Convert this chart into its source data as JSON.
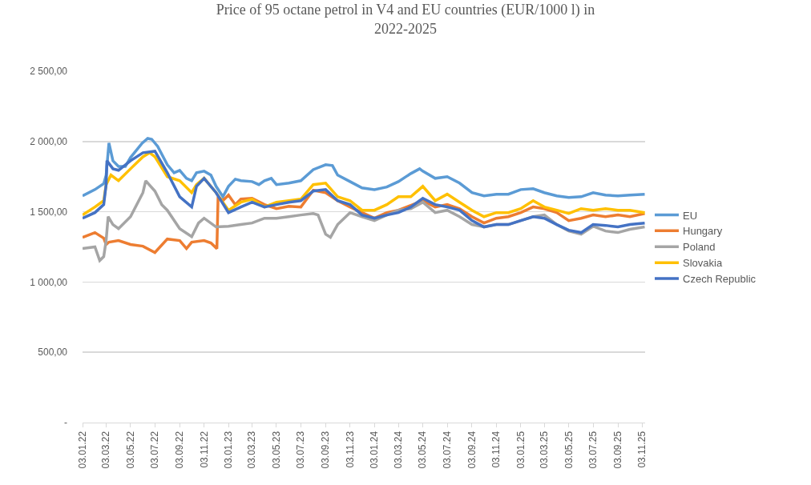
{
  "chart_data": {
    "type": "line",
    "title": "Price of 95 octane petrol in V4 and EU countries (EUR/1000 l) in 2022-2025",
    "xlim": [
      "2022-01-03",
      "2025-11-10"
    ],
    "xticks": [
      {
        "value": "2022-01-03",
        "label": "03.01.22"
      },
      {
        "value": "2022-03-03",
        "label": "03.03.22"
      },
      {
        "value": "2022-05-03",
        "label": "03.05.22"
      },
      {
        "value": "2022-07-03",
        "label": "03.07.22"
      },
      {
        "value": "2022-09-03",
        "label": "03.09.22"
      },
      {
        "value": "2022-11-03",
        "label": "03.11.22"
      },
      {
        "value": "2023-01-03",
        "label": "03.01.23"
      },
      {
        "value": "2023-03-03",
        "label": "03.03.23"
      },
      {
        "value": "2023-05-03",
        "label": "03.05.23"
      },
      {
        "value": "2023-07-03",
        "label": "03.07.23"
      },
      {
        "value": "2023-09-03",
        "label": "03.09.23"
      },
      {
        "value": "2023-11-03",
        "label": "03.11.23"
      },
      {
        "value": "2024-01-03",
        "label": "03.01.24"
      },
      {
        "value": "2024-03-03",
        "label": "03.03.24"
      },
      {
        "value": "2024-05-03",
        "label": "03.05.24"
      },
      {
        "value": "2024-07-03",
        "label": "03.07.24"
      },
      {
        "value": "2024-09-03",
        "label": "03.09.24"
      },
      {
        "value": "2024-11-03",
        "label": "03.11.24"
      },
      {
        "value": "2025-01-03",
        "label": "03.01.25"
      },
      {
        "value": "2025-03-03",
        "label": "03.03.25"
      },
      {
        "value": "2025-05-03",
        "label": "03.05.25"
      },
      {
        "value": "2025-07-03",
        "label": "03.07.25"
      },
      {
        "value": "2025-09-03",
        "label": "03.09.25"
      },
      {
        "value": "2025-11-03",
        "label": "03.11.25"
      }
    ],
    "ylim": [
      0,
      2500
    ],
    "yticks": [
      {
        "value": 0,
        "label": "-"
      },
      {
        "value": 500,
        "label": "500,00"
      },
      {
        "value": 1000,
        "label": "1 000,00"
      },
      {
        "value": 1500,
        "label": "1 500,00"
      },
      {
        "value": 2000,
        "label": "2 000,00"
      },
      {
        "value": 2500,
        "label": "2 500,00"
      }
    ],
    "grid": "y",
    "legend": "right",
    "marker": "none",
    "line_style": "solid",
    "series": [
      {
        "name": "EU",
        "color": "#5b9bd5",
        "x": [
          "2022-01-03",
          "2022-02-03",
          "2022-02-25",
          "2022-03-03",
          "2022-03-10",
          "2022-03-20",
          "2022-04-03",
          "2022-04-20",
          "2022-05-03",
          "2022-06-01",
          "2022-06-15",
          "2022-06-25",
          "2022-07-10",
          "2022-08-03",
          "2022-08-20",
          "2022-09-03",
          "2022-09-20",
          "2022-10-03",
          "2022-10-15",
          "2022-11-03",
          "2022-11-20",
          "2022-12-03",
          "2022-12-20",
          "2023-01-03",
          "2023-01-20",
          "2023-02-03",
          "2023-03-03",
          "2023-03-20",
          "2023-04-03",
          "2023-04-20",
          "2023-05-03",
          "2023-06-03",
          "2023-07-03",
          "2023-08-03",
          "2023-09-03",
          "2023-09-20",
          "2023-10-03",
          "2023-11-03",
          "2023-12-03",
          "2024-01-03",
          "2024-02-03",
          "2024-03-03",
          "2024-04-03",
          "2024-04-25",
          "2024-05-03",
          "2024-06-03",
          "2024-07-03",
          "2024-08-03",
          "2024-09-03",
          "2024-10-03",
          "2024-11-03",
          "2024-12-03",
          "2025-01-03",
          "2025-02-03",
          "2025-03-03",
          "2025-04-03",
          "2025-05-03",
          "2025-06-03",
          "2025-07-03",
          "2025-08-03",
          "2025-09-03",
          "2025-10-03",
          "2025-11-09"
        ],
        "values": [
          1613,
          1658,
          1700,
          1760,
          1990,
          1863,
          1823,
          1823,
          1886,
          1988,
          2022,
          2016,
          1965,
          1835,
          1778,
          1795,
          1738,
          1721,
          1778,
          1789,
          1761,
          1681,
          1607,
          1681,
          1732,
          1721,
          1715,
          1693,
          1721,
          1738,
          1693,
          1704,
          1721,
          1800,
          1835,
          1829,
          1761,
          1715,
          1670,
          1658,
          1676,
          1715,
          1772,
          1806,
          1789,
          1738,
          1750,
          1704,
          1636,
          1613,
          1625,
          1625,
          1658,
          1664,
          1636,
          1613,
          1602,
          1607,
          1636,
          1619,
          1613,
          1619,
          1625
        ]
      },
      {
        "name": "Hungary",
        "color": "#ed7d31",
        "x": [
          "2022-01-03",
          "2022-02-03",
          "2022-02-25",
          "2022-03-03",
          "2022-03-10",
          "2022-04-03",
          "2022-05-03",
          "2022-06-03",
          "2022-07-03",
          "2022-08-03",
          "2022-09-03",
          "2022-09-20",
          "2022-10-03",
          "2022-11-03",
          "2022-11-20",
          "2022-12-05",
          "2022-12-08",
          "2022-12-20",
          "2023-01-03",
          "2023-01-20",
          "2023-02-03",
          "2023-03-03",
          "2023-04-03",
          "2023-05-03",
          "2023-06-03",
          "2023-07-03",
          "2023-08-03",
          "2023-09-03",
          "2023-10-03",
          "2023-11-03",
          "2023-12-03",
          "2024-01-03",
          "2024-02-03",
          "2024-03-03",
          "2024-04-03",
          "2024-05-03",
          "2024-06-03",
          "2024-07-03",
          "2024-08-03",
          "2024-09-03",
          "2024-10-03",
          "2024-11-03",
          "2024-12-03",
          "2025-01-03",
          "2025-02-03",
          "2025-03-03",
          "2025-04-03",
          "2025-05-03",
          "2025-06-03",
          "2025-07-03",
          "2025-08-03",
          "2025-09-03",
          "2025-10-03",
          "2025-11-09"
        ],
        "values": [
          1318,
          1352,
          1312,
          1267,
          1284,
          1295,
          1267,
          1255,
          1210,
          1306,
          1295,
          1238,
          1284,
          1295,
          1278,
          1238,
          1607,
          1579,
          1619,
          1551,
          1590,
          1596,
          1551,
          1522,
          1539,
          1534,
          1653,
          1636,
          1579,
          1534,
          1494,
          1454,
          1494,
          1511,
          1545,
          1579,
          1534,
          1551,
          1522,
          1465,
          1420,
          1454,
          1465,
          1494,
          1534,
          1522,
          1494,
          1437,
          1454,
          1477,
          1465,
          1477,
          1465,
          1488
        ]
      },
      {
        "name": "Poland",
        "color": "#a5a5a5",
        "x": [
          "2022-01-03",
          "2022-02-03",
          "2022-02-15",
          "2022-02-25",
          "2022-03-03",
          "2022-03-08",
          "2022-03-20",
          "2022-04-03",
          "2022-05-03",
          "2022-06-03",
          "2022-06-10",
          "2022-07-03",
          "2022-07-20",
          "2022-08-03",
          "2022-09-03",
          "2022-10-03",
          "2022-10-20",
          "2022-11-03",
          "2022-12-03",
          "2023-01-03",
          "2023-02-03",
          "2023-03-03",
          "2023-04-03",
          "2023-05-03",
          "2023-06-03",
          "2023-07-03",
          "2023-08-03",
          "2023-08-15",
          "2023-09-03",
          "2023-09-15",
          "2023-10-03",
          "2023-11-03",
          "2023-12-03",
          "2024-01-03",
          "2024-02-03",
          "2024-03-03",
          "2024-04-03",
          "2024-05-03",
          "2024-06-03",
          "2024-07-03",
          "2024-08-03",
          "2024-09-03",
          "2024-10-03",
          "2024-11-03",
          "2024-12-03",
          "2025-01-03",
          "2025-02-03",
          "2025-03-03",
          "2025-04-03",
          "2025-05-03",
          "2025-06-03",
          "2025-07-03",
          "2025-08-03",
          "2025-09-03",
          "2025-10-03",
          "2025-11-09"
        ],
        "values": [
          1238,
          1250,
          1153,
          1181,
          1295,
          1465,
          1409,
          1380,
          1465,
          1636,
          1721,
          1647,
          1551,
          1511,
          1380,
          1323,
          1420,
          1454,
          1392,
          1397,
          1409,
          1420,
          1454,
          1454,
          1465,
          1477,
          1488,
          1477,
          1340,
          1318,
          1409,
          1494,
          1465,
          1437,
          1477,
          1511,
          1522,
          1568,
          1494,
          1511,
          1465,
          1409,
          1392,
          1409,
          1409,
          1437,
          1465,
          1477,
          1409,
          1363,
          1340,
          1397,
          1363,
          1352,
          1375,
          1392
        ]
      },
      {
        "name": "Slovakia",
        "color": "#ffc000",
        "x": [
          "2022-01-03",
          "2022-02-03",
          "2022-02-25",
          "2022-03-03",
          "2022-03-15",
          "2022-04-03",
          "2022-05-03",
          "2022-06-03",
          "2022-06-20",
          "2022-07-03",
          "2022-08-03",
          "2022-09-03",
          "2022-10-03",
          "2022-10-15",
          "2022-11-03",
          "2022-12-03",
          "2023-01-03",
          "2023-02-03",
          "2023-03-03",
          "2023-04-03",
          "2023-05-03",
          "2023-06-03",
          "2023-07-03",
          "2023-08-03",
          "2023-09-03",
          "2023-10-03",
          "2023-11-03",
          "2023-12-03",
          "2024-01-03",
          "2024-02-03",
          "2024-03-03",
          "2024-04-03",
          "2024-05-03",
          "2024-06-03",
          "2024-07-03",
          "2024-08-03",
          "2024-09-03",
          "2024-10-03",
          "2024-11-03",
          "2024-12-03",
          "2025-01-03",
          "2025-02-03",
          "2025-03-03",
          "2025-04-03",
          "2025-05-03",
          "2025-06-03",
          "2025-07-03",
          "2025-08-03",
          "2025-09-03",
          "2025-10-03",
          "2025-11-09"
        ],
        "values": [
          1477,
          1534,
          1579,
          1693,
          1761,
          1721,
          1806,
          1891,
          1920,
          1891,
          1750,
          1721,
          1636,
          1693,
          1738,
          1636,
          1511,
          1568,
          1590,
          1534,
          1568,
          1579,
          1590,
          1693,
          1704,
          1607,
          1579,
          1511,
          1511,
          1551,
          1607,
          1607,
          1681,
          1579,
          1625,
          1568,
          1511,
          1465,
          1494,
          1494,
          1522,
          1579,
          1534,
          1511,
          1488,
          1522,
          1511,
          1522,
          1511,
          1511,
          1494
        ]
      },
      {
        "name": "Czech Republic",
        "color": "#4472c4",
        "x": [
          "2022-01-03",
          "2022-02-03",
          "2022-02-25",
          "2022-03-03",
          "2022-03-05",
          "2022-03-20",
          "2022-04-03",
          "2022-05-03",
          "2022-06-03",
          "2022-07-03",
          "2022-08-03",
          "2022-09-03",
          "2022-10-03",
          "2022-10-15",
          "2022-11-03",
          "2022-12-03",
          "2023-01-03",
          "2023-02-03",
          "2023-03-03",
          "2023-04-03",
          "2023-05-03",
          "2023-06-03",
          "2023-07-03",
          "2023-08-03",
          "2023-09-03",
          "2023-10-03",
          "2023-11-03",
          "2023-12-03",
          "2024-01-03",
          "2024-02-03",
          "2024-03-03",
          "2024-04-03",
          "2024-05-03",
          "2024-06-03",
          "2024-07-03",
          "2024-08-03",
          "2024-09-03",
          "2024-10-03",
          "2024-11-03",
          "2024-12-03",
          "2025-01-03",
          "2025-02-03",
          "2025-03-03",
          "2025-04-03",
          "2025-05-03",
          "2025-06-03",
          "2025-07-03",
          "2025-08-03",
          "2025-09-03",
          "2025-10-03",
          "2025-11-09"
        ],
        "values": [
          1454,
          1494,
          1551,
          1693,
          1863,
          1806,
          1795,
          1863,
          1920,
          1931,
          1778,
          1607,
          1534,
          1681,
          1738,
          1636,
          1494,
          1534,
          1568,
          1534,
          1551,
          1568,
          1579,
          1647,
          1658,
          1579,
          1551,
          1477,
          1454,
          1477,
          1494,
          1534,
          1596,
          1551,
          1534,
          1511,
          1437,
          1392,
          1409,
          1409,
          1437,
          1465,
          1454,
          1409,
          1369,
          1352,
          1409,
          1403,
          1392,
          1409,
          1420
        ]
      }
    ]
  }
}
